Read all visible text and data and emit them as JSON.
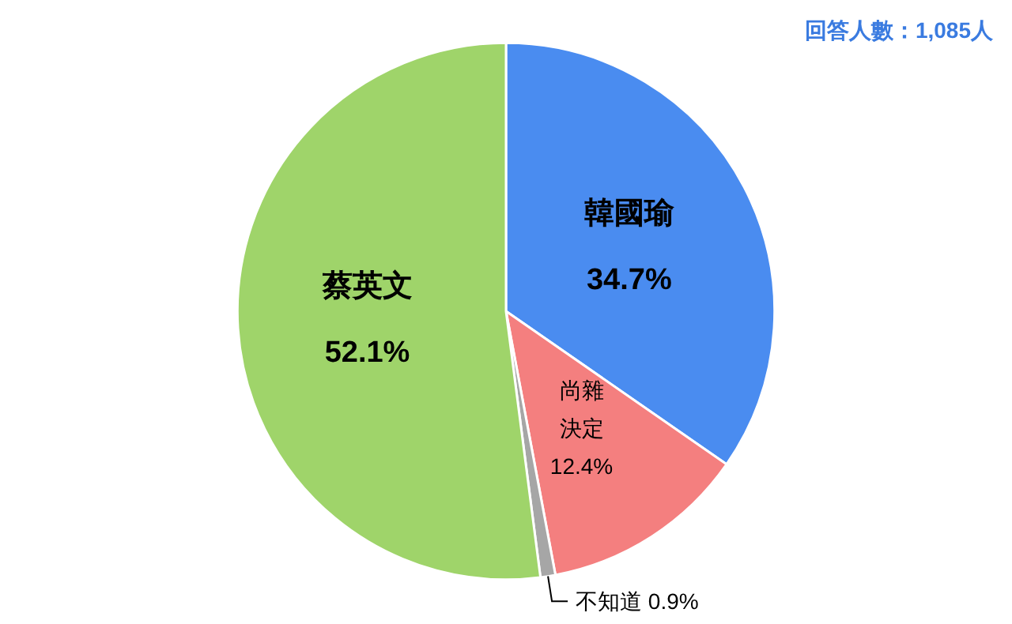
{
  "chart_data": {
    "type": "pie",
    "categories": [
      "韓國瑜",
      "尚雜決定",
      "不知道",
      "蔡英文"
    ],
    "values": [
      34.7,
      12.4,
      0.9,
      52.1
    ],
    "value_labels": [
      "34.7%",
      "12.4%",
      "0.9%",
      "52.1%"
    ],
    "colors": [
      "#4a8cf0",
      "#f47f7f",
      "#a6a6a6",
      "#9fd46a"
    ],
    "annotations": [
      "回答人數：1,085人"
    ]
  }
}
